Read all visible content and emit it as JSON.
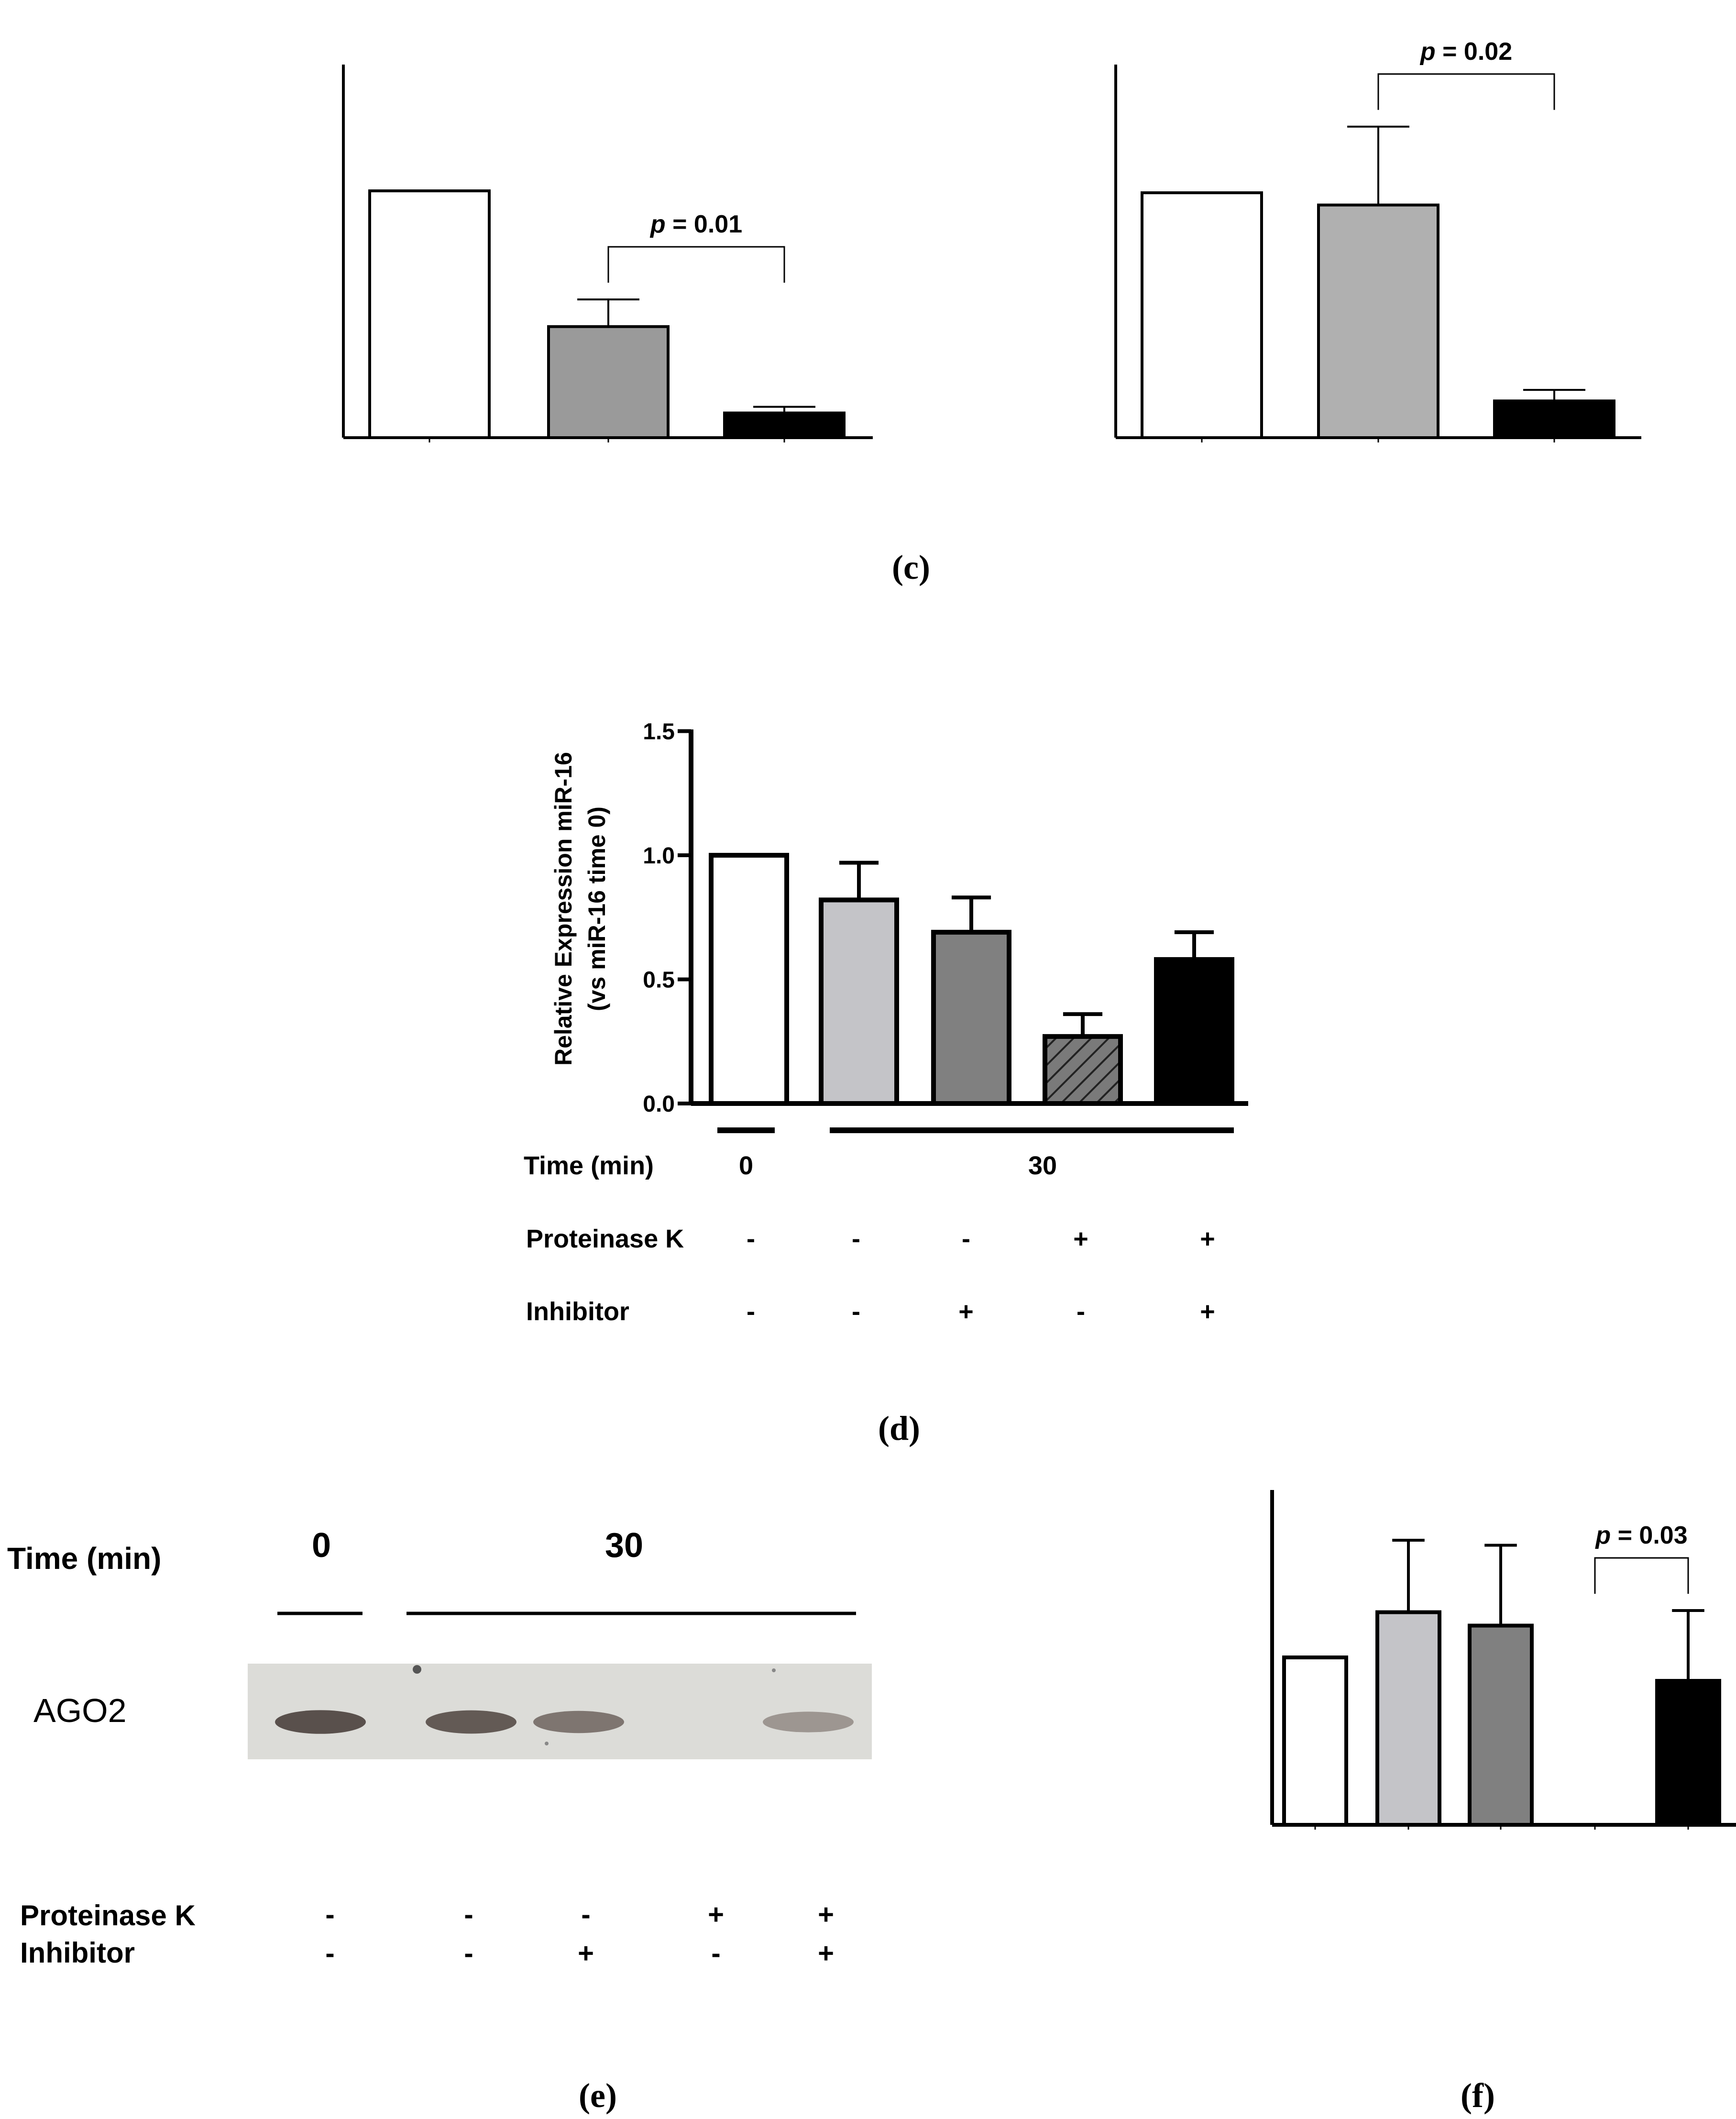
{
  "colors": {
    "white": "#ffffff",
    "light_gray": "#c4c4c8",
    "mid_gray": "#9a9a9a",
    "dark_gray": "#808080",
    "black": "#000000"
  },
  "panel_labels": {
    "c": "c",
    "d": "d",
    "e": "e",
    "f": "f"
  },
  "western_blot": {
    "time_label": "Time (min)",
    "time_0": "0",
    "time_30": "30",
    "band_label": "AGO2",
    "row_labels": [
      "Proteinase K",
      "Inhibitor"
    ],
    "proteinase_k": [
      "-",
      "-",
      "-",
      "+",
      "+"
    ],
    "inhibitor": [
      "-",
      "-",
      "+",
      "-",
      "+"
    ],
    "band_intensity": [
      0.85,
      0.8,
      0.65,
      0.0,
      0.45
    ]
  },
  "chart_data": [
    {
      "id": "c-left",
      "type": "bar",
      "categories": [
        "",
        "",
        ""
      ],
      "values": [
        1.0,
        0.45,
        0.1
      ],
      "errors": [
        0,
        0.11,
        0.025
      ],
      "fills": [
        "#ffffff",
        "#9a9a9a",
        "#000000"
      ],
      "ylim": [
        0,
        1.5
      ],
      "annotation": {
        "text": "p = 0.01",
        "from": 1,
        "to": 2
      }
    },
    {
      "id": "c-right",
      "type": "bar",
      "categories": [
        "",
        "",
        ""
      ],
      "values": [
        1.0,
        0.95,
        0.15
      ],
      "errors": [
        0,
        0.32,
        0.045
      ],
      "fills": [
        "#ffffff",
        "#b0b0b0",
        "#000000"
      ],
      "ylim": [
        0,
        1.5
      ],
      "annotation": {
        "text": "p = 0.02",
        "from": 1,
        "to": 2
      }
    },
    {
      "id": "d",
      "type": "bar",
      "categories": [
        "",
        "",
        "",
        "",
        ""
      ],
      "values": [
        1.0,
        0.82,
        0.69,
        0.27,
        0.58
      ],
      "errors": [
        0,
        0.15,
        0.14,
        0.09,
        0.11
      ],
      "fills": [
        "#ffffff",
        "#c4c4c8",
        "#808080",
        "hatch",
        "#000000"
      ],
      "ylabel_line1": "Relative Expression miR-16",
      "ylabel_line2": "(vs miR-16 time 0)",
      "ylim": [
        0,
        1.5
      ],
      "yticks": [
        "0.0",
        "0.5",
        "1.0",
        "1.5"
      ],
      "ytick_values": [
        0,
        0.5,
        1.0,
        1.5
      ],
      "time_label": "Time (min)",
      "time_0": "0",
      "time_30": "30",
      "row_labels": [
        "Proteinase K",
        "Inhibitor"
      ],
      "proteinase_k": [
        "-",
        "-",
        "-",
        "+",
        "+"
      ],
      "inhibitor": [
        "-",
        "-",
        "+",
        "-",
        "+"
      ]
    },
    {
      "id": "f",
      "type": "bar",
      "categories": [
        "",
        "",
        "",
        "",
        ""
      ],
      "values": [
        1.0,
        1.27,
        1.19,
        0.0,
        0.86
      ],
      "errors": [
        0,
        0.43,
        0.48,
        0,
        0.42
      ],
      "fills": [
        "#ffffff",
        "#c4c4c8",
        "#808080",
        "#ffffff",
        "#000000"
      ],
      "ylim": [
        0,
        2.0
      ],
      "annotation": {
        "text": "p = 0.03",
        "from": 3,
        "to": 4
      }
    }
  ]
}
